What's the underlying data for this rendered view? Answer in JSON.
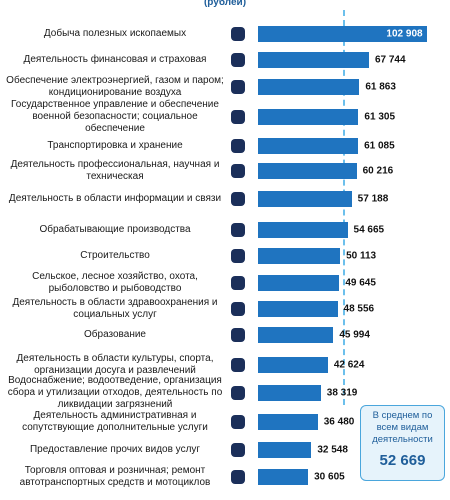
{
  "chart_data": {
    "type": "bar",
    "orientation": "horizontal",
    "subtitle": "(рублей)",
    "categories": [
      "Добыча полезных ископаемых",
      "Деятельность финансовая и страховая",
      "Обеспечение электроэнергией, газом и паром; кондиционирование воздуха",
      "Государственное управление и обеспечение военной безопасности; социальное обеспечение",
      "Транспортировка и хранение",
      "Деятельность профессиональная, научная и техническая",
      "Деятельность в области информации и связи",
      "Обрабатывающие производства",
      "Строительство",
      "Сельское, лесное хозяйство, охота, рыболовство и рыбоводство",
      "Деятельность в области здравоохранения и социальных услуг",
      "Образование",
      "Деятельность в области культуры, спорта, организации досуга и развлечений",
      "Водоснабжение; водоотведение, организация сбора и утилизации отходов, деятельность по ликвидации загрязнений",
      "Деятельность административная и сопутствующие дополнительные услуги",
      "Предоставление прочих видов услуг",
      "Торговля оптовая и розничная; ремонт автотранспортных средств и мотоциклов"
    ],
    "values": [
      102908,
      67744,
      61863,
      61305,
      61085,
      60216,
      57188,
      54665,
      50113,
      49645,
      48556,
      45994,
      42624,
      38319,
      36480,
      32548,
      30605
    ],
    "value_labels": [
      "102 908",
      "67 744",
      "61 863",
      "61 305",
      "61 085",
      "60 216",
      "57 188",
      "54 665",
      "50 113",
      "49 645",
      "48 556",
      "45 994",
      "42 624",
      "38 319",
      "36 480",
      "32 548",
      "30 605"
    ],
    "color": "#1f74c0",
    "xlim": [
      0,
      105000
    ],
    "average": {
      "label": "В среднем по всем видам деятельности",
      "value": 52669,
      "value_label": "52 669"
    }
  }
}
